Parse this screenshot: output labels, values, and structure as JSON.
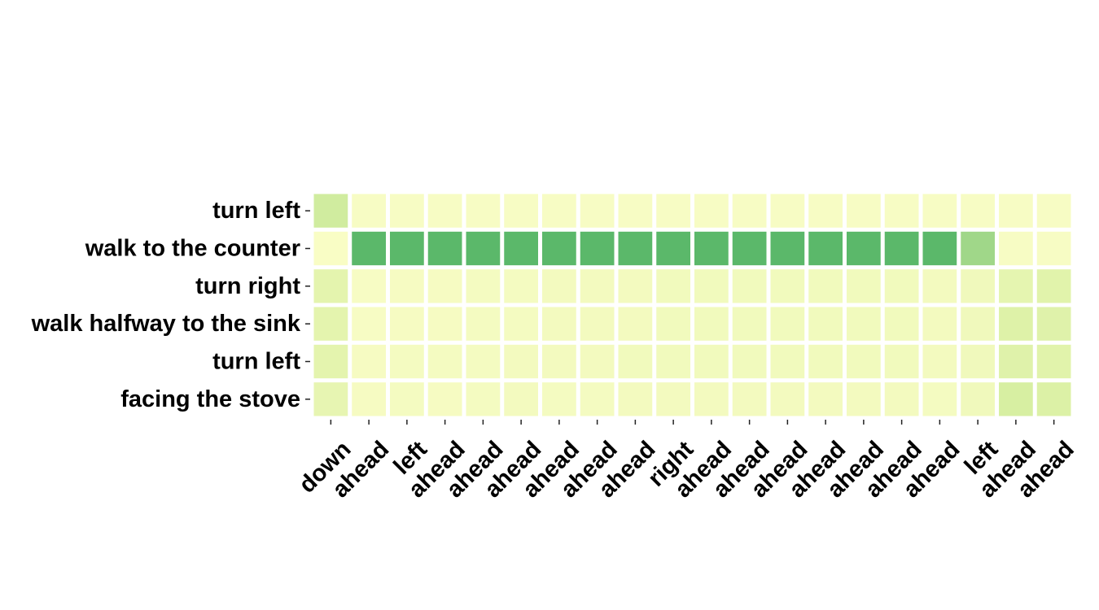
{
  "chart_data": {
    "type": "heatmap",
    "title": "",
    "xlabel": "",
    "ylabel": "",
    "x_labels": [
      "down",
      "ahead",
      "left",
      "ahead",
      "ahead",
      "ahead",
      "ahead",
      "ahead",
      "ahead",
      "right",
      "ahead",
      "ahead",
      "ahead",
      "ahead",
      "ahead",
      "ahead",
      "ahead",
      "left",
      "ahead",
      "ahead"
    ],
    "y_labels": [
      "turn left",
      "walk to the counter",
      "turn right",
      "walk halfway to the sink",
      "turn left",
      "facing the stove"
    ],
    "value_range": [
      0,
      1
    ],
    "colormap": [
      "#ffffcc",
      "#d9f0a3",
      "#addd8e",
      "#78c679",
      "#41ab5d"
    ],
    "grid": false,
    "legend": "none",
    "values": [
      [
        0.3,
        0.05,
        0.05,
        0.05,
        0.05,
        0.05,
        0.05,
        0.05,
        0.05,
        0.05,
        0.05,
        0.05,
        0.05,
        0.05,
        0.05,
        0.05,
        0.05,
        0.05,
        0.05,
        0.05
      ],
      [
        0.04,
        0.88,
        0.88,
        0.88,
        0.88,
        0.88,
        0.88,
        0.88,
        0.88,
        0.88,
        0.88,
        0.88,
        0.88,
        0.88,
        0.88,
        0.88,
        0.88,
        0.56,
        0.05,
        0.05
      ],
      [
        0.18,
        0.05,
        0.06,
        0.06,
        0.07,
        0.07,
        0.08,
        0.08,
        0.08,
        0.09,
        0.09,
        0.09,
        0.09,
        0.09,
        0.09,
        0.09,
        0.08,
        0.1,
        0.17,
        0.2
      ],
      [
        0.18,
        0.05,
        0.06,
        0.06,
        0.07,
        0.07,
        0.08,
        0.08,
        0.08,
        0.09,
        0.09,
        0.09,
        0.09,
        0.09,
        0.09,
        0.09,
        0.08,
        0.1,
        0.22,
        0.21
      ],
      [
        0.18,
        0.06,
        0.07,
        0.07,
        0.07,
        0.08,
        0.08,
        0.08,
        0.09,
        0.09,
        0.09,
        0.09,
        0.09,
        0.09,
        0.09,
        0.09,
        0.08,
        0.1,
        0.21,
        0.2
      ],
      [
        0.16,
        0.06,
        0.07,
        0.06,
        0.07,
        0.08,
        0.07,
        0.07,
        0.08,
        0.08,
        0.08,
        0.08,
        0.08,
        0.08,
        0.08,
        0.08,
        0.07,
        0.1,
        0.26,
        0.23
      ]
    ]
  }
}
